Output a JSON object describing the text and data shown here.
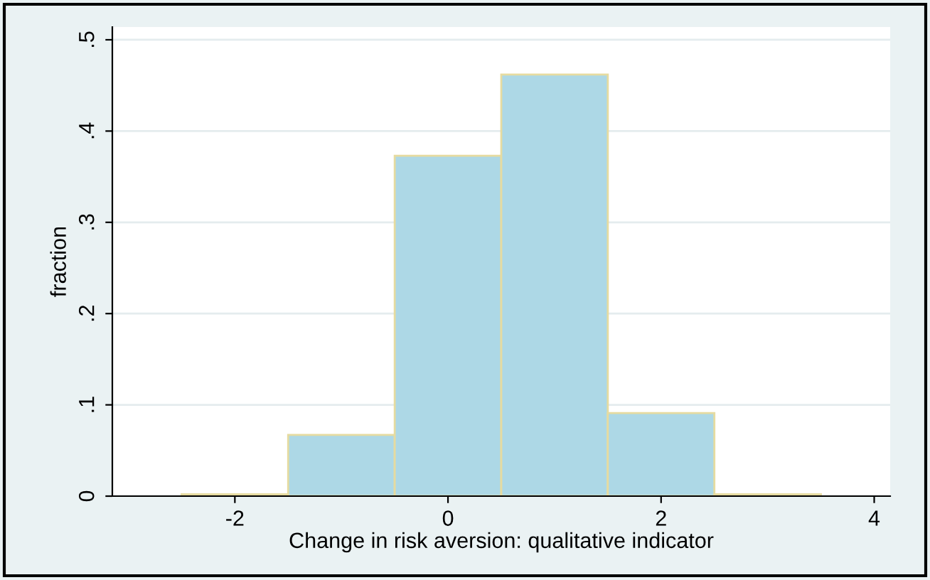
{
  "chart_data": {
    "type": "histogram",
    "xlabel": "Change in risk aversion: qualitative indicator",
    "ylabel": "fraction",
    "bins": [
      -2.5,
      -1.5,
      -0.5,
      0.5,
      1.5,
      2.5,
      3.5
    ],
    "values": [
      0.002,
      0.067,
      0.373,
      0.462,
      0.091,
      0.002
    ],
    "color": "#add8e6",
    "xlim": [
      -3.15,
      4.15
    ],
    "ylim": [
      0,
      0.514
    ],
    "xticks": [
      -2,
      0,
      2,
      4
    ],
    "yticks": [
      {
        "value": 0,
        "label": "0"
      },
      {
        "value": 0.1,
        "label": ".1"
      },
      {
        "value": 0.2,
        "label": ".2"
      },
      {
        "value": 0.3,
        "label": ".3"
      },
      {
        "value": 0.4,
        "label": ".4"
      },
      {
        "value": 0.5,
        "label": ".5"
      }
    ],
    "grid": "y"
  }
}
